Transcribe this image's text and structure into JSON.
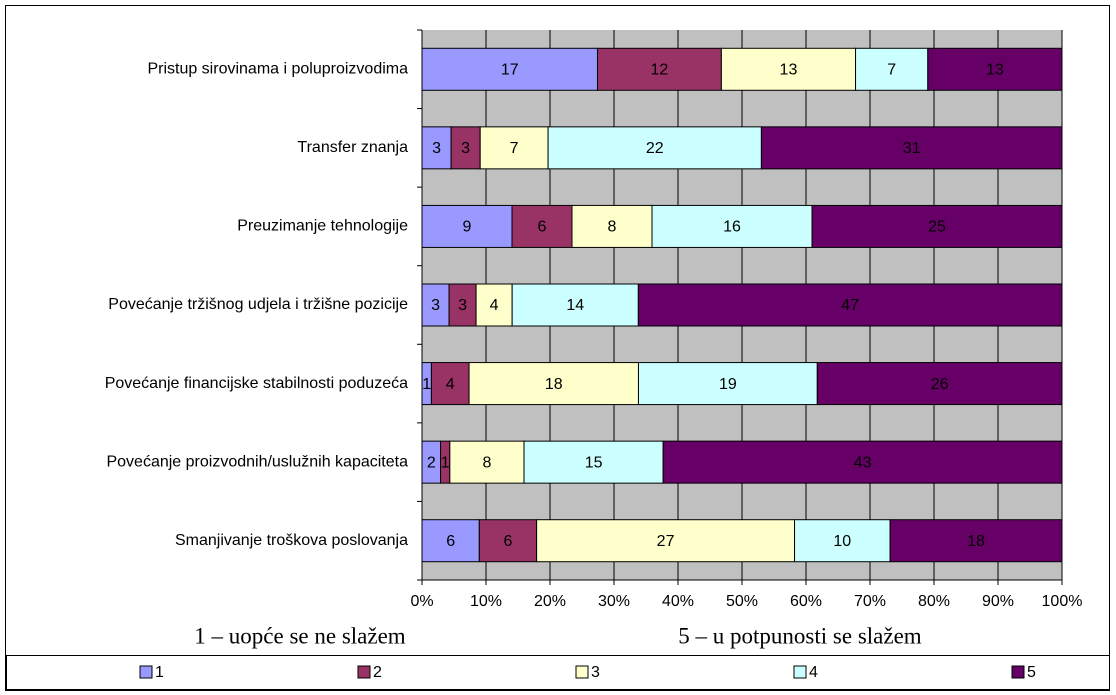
{
  "chart_data": {
    "type": "bar",
    "orientation": "horizontal",
    "stacking": "percent",
    "categories": [
      "Pristup sirovinama i poluproizvodima",
      "Transfer znanja",
      "Preuzimanje tehnologije",
      "Povećanje tržišnog udjela i tržišne pozicije",
      "Povećanje financijske stabilnosti poduzeća",
      "Povećanje proizvodnih/uslužnih kapaciteta",
      "Smanjivanje troškova poslovanja"
    ],
    "series": [
      {
        "name": "1",
        "color": "#9999ff",
        "values": [
          17,
          3,
          9,
          3,
          1,
          2,
          6
        ]
      },
      {
        "name": "2",
        "color": "#993366",
        "values": [
          12,
          3,
          6,
          3,
          4,
          1,
          6
        ]
      },
      {
        "name": "3",
        "color": "#ffffcc",
        "values": [
          13,
          7,
          8,
          4,
          18,
          8,
          27
        ]
      },
      {
        "name": "4",
        "color": "#ccffff",
        "values": [
          7,
          22,
          16,
          14,
          19,
          15,
          10
        ]
      },
      {
        "name": "5",
        "color": "#660066",
        "values": [
          13,
          31,
          25,
          47,
          26,
          43,
          18
        ]
      }
    ],
    "xlim": [
      0,
      100
    ],
    "xticks": [
      {
        "value": 0,
        "label": "0%"
      },
      {
        "value": 10,
        "label": "10%"
      },
      {
        "value": 20,
        "label": "20%"
      },
      {
        "value": 30,
        "label": "30%"
      },
      {
        "value": 40,
        "label": "40%"
      },
      {
        "value": 50,
        "label": "50%"
      },
      {
        "value": 60,
        "label": "60%"
      },
      {
        "value": 70,
        "label": "70%"
      },
      {
        "value": 80,
        "label": "80%"
      },
      {
        "value": 90,
        "label": "90%"
      },
      {
        "value": 100,
        "label": "100%"
      }
    ],
    "grid": true,
    "legend": "bottom",
    "annotations": [
      "1 – uopće se ne slažem",
      "5 – u potpunosti se slažem"
    ]
  }
}
